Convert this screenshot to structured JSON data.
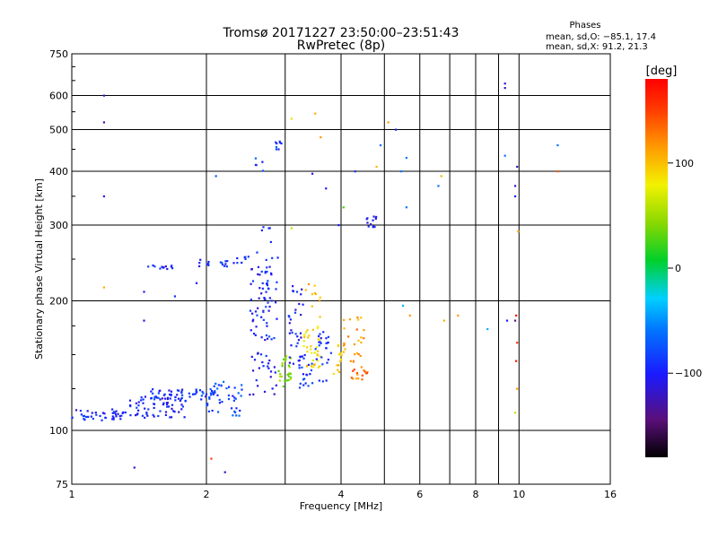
{
  "chart_data": {
    "type": "scatter",
    "title": "Tromsø 20171227 23:50:00–23:51:43",
    "subtitle": "RwPretec (8p)",
    "xlabel": "Frequency [MHz]",
    "ylabel": "Stationary phase Virtual Height [km]",
    "x_scale": "log",
    "y_scale": "log",
    "xlim": [
      1,
      16
    ],
    "ylim": [
      75,
      750
    ],
    "x_ticks": [
      1,
      2,
      4,
      6,
      8,
      10,
      16
    ],
    "x_tick_labels": [
      "1",
      "2",
      "4",
      "6",
      "8",
      "10",
      "16"
    ],
    "x_minor_ticks": [
      3,
      5,
      7,
      9
    ],
    "y_ticks": [
      75,
      100,
      200,
      300,
      400,
      500,
      600,
      750
    ],
    "y_tick_labels": [
      "75",
      "100",
      "200",
      "300",
      "400",
      "500",
      "600",
      "750"
    ],
    "grid": true,
    "phase_box": {
      "title": "Phases",
      "line1": "mean, sd,O: −85.1, 17.4",
      "line2": "mean, sd,X:  91.2, 21.3"
    },
    "colorbar": {
      "label": "[deg]",
      "range": [
        -180,
        180
      ],
      "ticks": [
        100,
        0,
        -100
      ],
      "tick_labels": [
        "100",
        "0",
        "−100"
      ],
      "colormap": "rainbow (black→purple→blue→cyan→green→yellow→orange→red)"
    },
    "clusters": [
      {
        "x0": 1.0,
        "x1": 1.3,
        "y0": 105,
        "y1": 112,
        "phase": -95,
        "n": 40
      },
      {
        "x0": 1.3,
        "x1": 1.8,
        "y0": 107,
        "y1": 120,
        "phase": -100,
        "n": 60
      },
      {
        "x0": 1.5,
        "x1": 2.1,
        "y0": 118,
        "y1": 125,
        "phase": -90,
        "n": 60
      },
      {
        "x0": 2.0,
        "x1": 2.4,
        "y0": 108,
        "y1": 130,
        "phase": -80,
        "n": 40
      },
      {
        "x0": 1.45,
        "x1": 1.7,
        "y0": 237,
        "y1": 242,
        "phase": -100,
        "n": 12
      },
      {
        "x0": 1.9,
        "x1": 2.25,
        "y0": 240,
        "y1": 250,
        "phase": -95,
        "n": 15
      },
      {
        "x0": 2.3,
        "x1": 2.5,
        "y0": 245,
        "y1": 255,
        "phase": -100,
        "n": 8
      },
      {
        "x0": 2.5,
        "x1": 2.9,
        "y0": 120,
        "y1": 260,
        "phase": -100,
        "n": 70
      },
      {
        "x0": 2.65,
        "x1": 2.8,
        "y0": 140,
        "y1": 310,
        "phase": -90,
        "n": 30
      },
      {
        "x0": 2.9,
        "x1": 3.1,
        "y0": 125,
        "y1": 150,
        "phase": 40,
        "n": 30
      },
      {
        "x0": 3.05,
        "x1": 3.3,
        "y0": 140,
        "y1": 220,
        "phase": -100,
        "n": 30
      },
      {
        "x0": 3.3,
        "x1": 3.6,
        "y0": 140,
        "y1": 175,
        "phase": 90,
        "n": 35
      },
      {
        "x0": 3.2,
        "x1": 3.45,
        "y0": 125,
        "y1": 150,
        "phase": -90,
        "n": 25
      },
      {
        "x0": 3.5,
        "x1": 3.8,
        "y0": 130,
        "y1": 170,
        "phase": -90,
        "n": 25
      },
      {
        "x0": 3.85,
        "x1": 4.1,
        "y0": 135,
        "y1": 160,
        "phase": 100,
        "n": 15
      },
      {
        "x0": 4.2,
        "x1": 4.6,
        "y0": 130,
        "y1": 150,
        "phase": 130,
        "n": 20
      },
      {
        "x0": 4.0,
        "x1": 4.5,
        "y0": 150,
        "y1": 185,
        "phase": 120,
        "n": 20
      },
      {
        "x0": 4.55,
        "x1": 4.8,
        "y0": 295,
        "y1": 315,
        "phase": -100,
        "n": 12
      },
      {
        "x0": 2.85,
        "x1": 3.0,
        "y0": 450,
        "y1": 470,
        "phase": -90,
        "n": 8
      },
      {
        "x0": 2.5,
        "x1": 2.7,
        "y0": 400,
        "y1": 440,
        "phase": -80,
        "n": 5
      },
      {
        "x0": 3.3,
        "x1": 3.6,
        "y0": 180,
        "y1": 220,
        "phase": 110,
        "n": 10
      }
    ],
    "scatter_points": [
      {
        "x": 1.18,
        "y": 600,
        "phase": -120
      },
      {
        "x": 1.18,
        "y": 520,
        "phase": -130
      },
      {
        "x": 1.18,
        "y": 350,
        "phase": -110
      },
      {
        "x": 1.18,
        "y": 215,
        "phase": 110
      },
      {
        "x": 1.38,
        "y": 82,
        "phase": -120
      },
      {
        "x": 1.45,
        "y": 210,
        "phase": -100
      },
      {
        "x": 1.45,
        "y": 180,
        "phase": -110
      },
      {
        "x": 1.7,
        "y": 205,
        "phase": -90
      },
      {
        "x": 1.9,
        "y": 220,
        "phase": -100
      },
      {
        "x": 2.1,
        "y": 390,
        "phase": -70
      },
      {
        "x": 2.05,
        "y": 86,
        "phase": 150
      },
      {
        "x": 2.2,
        "y": 80,
        "phase": -120
      },
      {
        "x": 3.1,
        "y": 530,
        "phase": 90
      },
      {
        "x": 3.5,
        "y": 545,
        "phase": 110
      },
      {
        "x": 3.6,
        "y": 480,
        "phase": 120
      },
      {
        "x": 3.45,
        "y": 395,
        "phase": -110
      },
      {
        "x": 3.7,
        "y": 365,
        "phase": -100
      },
      {
        "x": 4.05,
        "y": 330,
        "phase": 20
      },
      {
        "x": 3.95,
        "y": 300,
        "phase": -100
      },
      {
        "x": 4.3,
        "y": 400,
        "phase": -90
      },
      {
        "x": 5.1,
        "y": 520,
        "phase": 120
      },
      {
        "x": 5.3,
        "y": 500,
        "phase": -100
      },
      {
        "x": 5.45,
        "y": 400,
        "phase": -60
      },
      {
        "x": 5.6,
        "y": 430,
        "phase": -60
      },
      {
        "x": 5.6,
        "y": 330,
        "phase": -60
      },
      {
        "x": 5.7,
        "y": 185,
        "phase": 120
      },
      {
        "x": 5.5,
        "y": 195,
        "phase": -40
      },
      {
        "x": 6.6,
        "y": 370,
        "phase": -60
      },
      {
        "x": 6.7,
        "y": 390,
        "phase": 110
      },
      {
        "x": 6.8,
        "y": 180,
        "phase": 110
      },
      {
        "x": 7.3,
        "y": 185,
        "phase": 120
      },
      {
        "x": 9.3,
        "y": 640,
        "phase": -110
      },
      {
        "x": 9.3,
        "y": 625,
        "phase": -120
      },
      {
        "x": 9.3,
        "y": 435,
        "phase": -60
      },
      {
        "x": 9.4,
        "y": 180,
        "phase": -100
      },
      {
        "x": 9.85,
        "y": 185,
        "phase": 170
      },
      {
        "x": 9.8,
        "y": 180,
        "phase": -140
      },
      {
        "x": 9.9,
        "y": 410,
        "phase": -120
      },
      {
        "x": 9.8,
        "y": 370,
        "phase": -110
      },
      {
        "x": 9.8,
        "y": 350,
        "phase": -100
      },
      {
        "x": 9.95,
        "y": 290,
        "phase": 110
      },
      {
        "x": 9.9,
        "y": 160,
        "phase": 150
      },
      {
        "x": 9.85,
        "y": 145,
        "phase": 170
      },
      {
        "x": 9.9,
        "y": 125,
        "phase": 120
      },
      {
        "x": 9.8,
        "y": 110,
        "phase": 60
      },
      {
        "x": 12.2,
        "y": 460,
        "phase": -60
      },
      {
        "x": 12.2,
        "y": 400,
        "phase": 140
      },
      {
        "x": 8.5,
        "y": 172,
        "phase": -40
      },
      {
        "x": 4.9,
        "y": 460,
        "phase": -60
      },
      {
        "x": 4.8,
        "y": 410,
        "phase": 110
      },
      {
        "x": 3.1,
        "y": 295,
        "phase": 60
      }
    ]
  }
}
